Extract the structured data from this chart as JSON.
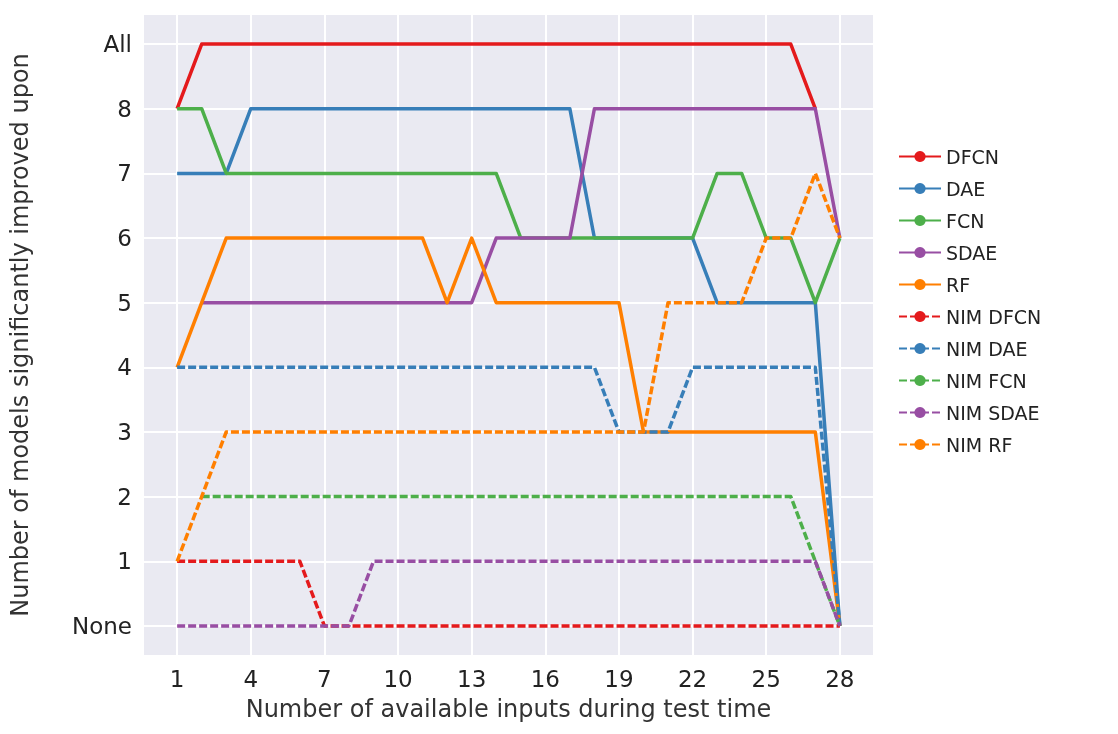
{
  "chart_data": {
    "type": "line",
    "xlabel": "Number of available inputs during test time",
    "ylabel": "Number of models significantly improved upon",
    "x": [
      1,
      2,
      3,
      4,
      5,
      6,
      7,
      8,
      9,
      10,
      11,
      12,
      13,
      14,
      15,
      16,
      17,
      18,
      19,
      20,
      21,
      22,
      23,
      24,
      25,
      26,
      27,
      28
    ],
    "series": [
      {
        "name": "DFCN",
        "color": "#e41a1c",
        "line_style": "solid",
        "values": [
          8,
          9,
          9,
          9,
          9,
          9,
          9,
          9,
          9,
          9,
          9,
          9,
          9,
          9,
          9,
          9,
          9,
          9,
          9,
          9,
          9,
          9,
          9,
          9,
          9,
          9,
          8,
          null
        ]
      },
      {
        "name": "DAE",
        "color": "#377eb8",
        "line_style": "solid",
        "values": [
          7,
          7,
          7,
          8,
          8,
          8,
          8,
          8,
          8,
          8,
          8,
          8,
          8,
          8,
          8,
          8,
          8,
          6,
          6,
          6,
          6,
          6,
          5,
          5,
          5,
          5,
          5,
          0
        ]
      },
      {
        "name": "FCN",
        "color": "#4daf4a",
        "line_style": "solid",
        "values": [
          8,
          8,
          7,
          7,
          7,
          7,
          7,
          7,
          7,
          7,
          7,
          7,
          7,
          7,
          6,
          6,
          6,
          6,
          6,
          6,
          6,
          6,
          7,
          7,
          6,
          6,
          5,
          6
        ]
      },
      {
        "name": "SDAE",
        "color": "#984ea3",
        "line_style": "solid",
        "values": [
          null,
          5,
          5,
          5,
          5,
          5,
          5,
          5,
          5,
          5,
          5,
          5,
          5,
          6,
          6,
          6,
          6,
          8,
          8,
          8,
          8,
          8,
          8,
          8,
          8,
          8,
          8,
          6
        ]
      },
      {
        "name": "RF",
        "color": "#ff7f00",
        "line_style": "solid",
        "values": [
          4,
          5,
          6,
          6,
          6,
          6,
          6,
          6,
          6,
          6,
          6,
          5,
          6,
          5,
          5,
          5,
          5,
          5,
          5,
          3,
          3,
          3,
          3,
          3,
          3,
          3,
          3,
          0
        ]
      },
      {
        "name": "NIM DFCN",
        "color": "#e41a1c",
        "line_style": "dashed",
        "values": [
          1,
          1,
          1,
          1,
          1,
          1,
          0,
          0,
          0,
          0,
          0,
          0,
          0,
          0,
          0,
          0,
          0,
          0,
          0,
          0,
          0,
          0,
          0,
          0,
          0,
          0,
          0,
          0
        ]
      },
      {
        "name": "NIM DAE",
        "color": "#377eb8",
        "line_style": "dashed",
        "values": [
          4,
          4,
          4,
          4,
          4,
          4,
          4,
          4,
          4,
          4,
          4,
          4,
          4,
          4,
          4,
          4,
          4,
          4,
          3,
          3,
          3,
          4,
          4,
          4,
          4,
          4,
          4,
          0
        ]
      },
      {
        "name": "NIM FCN",
        "color": "#4daf4a",
        "line_style": "dashed",
        "values": [
          null,
          2,
          2,
          2,
          2,
          2,
          2,
          2,
          2,
          2,
          2,
          2,
          2,
          2,
          2,
          2,
          2,
          2,
          2,
          2,
          2,
          2,
          2,
          2,
          2,
          2,
          1,
          0
        ]
      },
      {
        "name": "NIM SDAE",
        "color": "#984ea3",
        "line_style": "dashed",
        "values": [
          0,
          0,
          0,
          0,
          0,
          0,
          0,
          0,
          1,
          1,
          1,
          1,
          1,
          1,
          1,
          1,
          1,
          1,
          1,
          1,
          1,
          1,
          1,
          1,
          1,
          1,
          1,
          0
        ]
      },
      {
        "name": "NIM RF",
        "color": "#ff7f00",
        "line_style": "dashed",
        "values": [
          1,
          2,
          3,
          3,
          3,
          3,
          3,
          3,
          3,
          3,
          3,
          3,
          3,
          3,
          3,
          3,
          3,
          3,
          3,
          3,
          5,
          5,
          5,
          5,
          6,
          6,
          7,
          6
        ]
      }
    ],
    "xlim": [
      -0.35,
      29.35
    ],
    "xticks": [
      1,
      4,
      7,
      10,
      13,
      16,
      19,
      22,
      25,
      28
    ],
    "ylim": [
      -0.45,
      9.45
    ],
    "yticks": [
      {
        "value": 0,
        "label": "None"
      },
      1,
      2,
      3,
      4,
      5,
      6,
      7,
      8,
      {
        "value": 9,
        "label": "All"
      }
    ],
    "grid": true,
    "legend": "right",
    "marker": "none"
  }
}
